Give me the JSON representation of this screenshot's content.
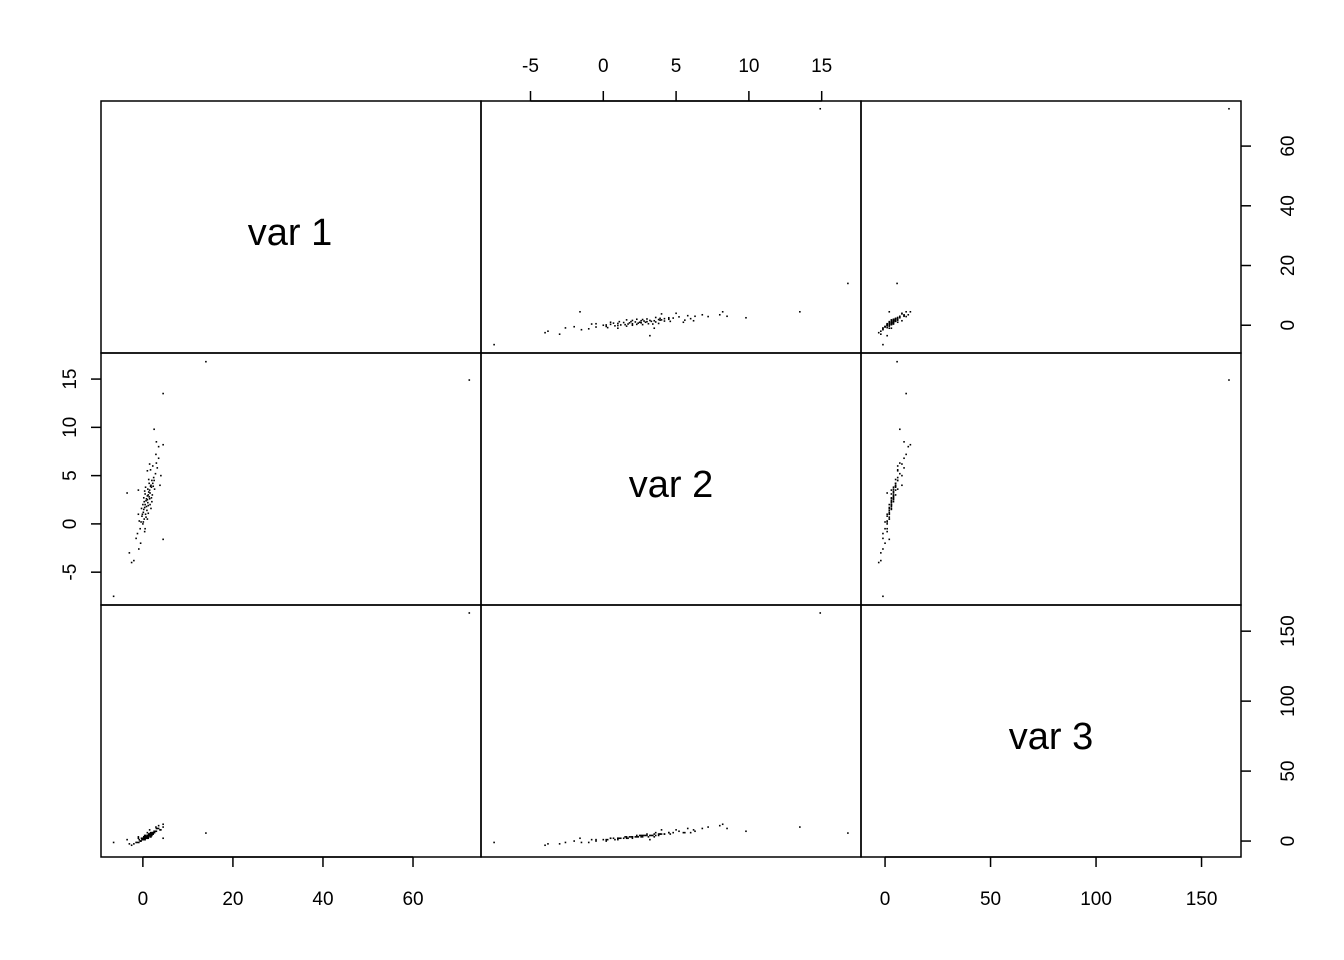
{
  "chart_data": {
    "type": "scatter",
    "subtype": "scatterplot-matrix",
    "variables": [
      "var 1",
      "var 2",
      "var 3"
    ],
    "ranges": {
      "var 1": [
        -9.3,
        75.1
      ],
      "var 2": [
        -8.4,
        17.7
      ],
      "var 3": [
        -11.4,
        168.7
      ]
    },
    "ticks": {
      "var 1": [
        0,
        20,
        40,
        60
      ],
      "var 2": [
        -5,
        0,
        5,
        10,
        15
      ],
      "var 3": [
        0,
        50,
        100,
        150
      ]
    },
    "axis_placement": {
      "var 1": [
        "bottom",
        "right"
      ],
      "var 2": [
        "top",
        "left"
      ],
      "var 3": [
        "bottom",
        "right"
      ]
    },
    "grid": false,
    "point_color": "#000000",
    "points": [
      [
        72.5,
        14.9,
        163
      ],
      [
        14,
        16.8,
        5.7
      ],
      [
        -6.5,
        -7.5,
        -1
      ],
      [
        4.5,
        13.5,
        10
      ],
      [
        3,
        8.5,
        9
      ],
      [
        4.5,
        8.2,
        12
      ],
      [
        2.5,
        9.8,
        7
      ],
      [
        3.5,
        8.0,
        11
      ],
      [
        1.5,
        6.2,
        8
      ],
      [
        2.2,
        6.0,
        6
      ],
      [
        3.2,
        5.8,
        9
      ],
      [
        1.0,
        5.5,
        6
      ],
      [
        4.0,
        5.0,
        8
      ],
      [
        3.0,
        6.3,
        7
      ],
      [
        -3.5,
        3.2,
        1
      ],
      [
        -1.0,
        3.5,
        3
      ],
      [
        -3.0,
        -3.0,
        -2
      ],
      [
        -2.5,
        -4.0,
        -3
      ],
      [
        -2.0,
        -3.8,
        -2
      ],
      [
        -1.5,
        -1.5,
        -1
      ],
      [
        -0.5,
        -2.0,
        0
      ],
      [
        4.5,
        -1.6,
        2
      ],
      [
        0.5,
        -0.5,
        1
      ],
      [
        -1.0,
        1.0,
        2
      ],
      [
        -0.8,
        0.3,
        1
      ],
      [
        0.2,
        1.5,
        3
      ],
      [
        0.5,
        2.0,
        3
      ],
      [
        1.0,
        2.5,
        4
      ],
      [
        1.2,
        3.0,
        4
      ],
      [
        1.5,
        3.5,
        5
      ],
      [
        1.8,
        4.0,
        5
      ],
      [
        2.0,
        4.5,
        6
      ],
      [
        0.0,
        0.0,
        1
      ],
      [
        0.3,
        0.5,
        2
      ],
      [
        0.6,
        1.0,
        2
      ],
      [
        0.8,
        1.8,
        3
      ],
      [
        1.1,
        2.2,
        3
      ],
      [
        1.4,
        2.8,
        4
      ],
      [
        1.6,
        3.2,
        4
      ],
      [
        1.9,
        3.8,
        5
      ],
      [
        2.2,
        4.2,
        5
      ],
      [
        -0.2,
        0.8,
        1
      ],
      [
        0.1,
        1.2,
        2
      ],
      [
        0.4,
        1.7,
        2
      ],
      [
        0.7,
        2.4,
        3
      ],
      [
        1.0,
        2.9,
        4
      ],
      [
        1.3,
        3.3,
        4
      ],
      [
        1.7,
        3.9,
        5
      ],
      [
        2.4,
        4.8,
        6
      ],
      [
        -0.4,
        0.2,
        0
      ],
      [
        0.9,
        1.4,
        2
      ],
      [
        1.2,
        1.9,
        3
      ],
      [
        1.5,
        2.6,
        4
      ],
      [
        0.2,
        2.7,
        3
      ],
      [
        0.5,
        3.1,
        3
      ],
      [
        2.6,
        3.6,
        6
      ],
      [
        2.0,
        2.3,
        4
      ],
      [
        0.0,
        2.0,
        2
      ],
      [
        1.8,
        1.6,
        3
      ],
      [
        -0.6,
        -0.5,
        0
      ],
      [
        0.4,
        -0.8,
        1
      ],
      [
        1.0,
        0.5,
        2
      ],
      [
        2.8,
        5.2,
        7
      ],
      [
        1.3,
        4.6,
        5
      ],
      [
        0.6,
        3.8,
        4
      ],
      [
        -0.3,
        1.6,
        2
      ],
      [
        1.6,
        2.0,
        3
      ],
      [
        2.1,
        3.0,
        5
      ],
      [
        0.8,
        2.6,
        3
      ],
      [
        1.1,
        3.6,
        4
      ],
      [
        0.3,
        2.3,
        3
      ],
      [
        1.4,
        4.2,
        5
      ],
      [
        -0.1,
        1.0,
        1
      ],
      [
        0.7,
        0.7,
        2
      ],
      [
        2.3,
        3.9,
        5
      ],
      [
        1.9,
        2.7,
        4
      ],
      [
        0.1,
        0.2,
        1
      ],
      [
        1.2,
        1.1,
        2
      ],
      [
        2.5,
        4.5,
        6
      ],
      [
        0.4,
        3.4,
        4
      ],
      [
        3.5,
        6.8,
        9
      ],
      [
        2.9,
        7.2,
        10
      ],
      [
        -1.2,
        -1.0,
        -1
      ],
      [
        -0.9,
        -2.6,
        -1
      ],
      [
        1.7,
        5.6,
        6
      ],
      [
        3.8,
        4.0,
        8
      ]
    ]
  }
}
